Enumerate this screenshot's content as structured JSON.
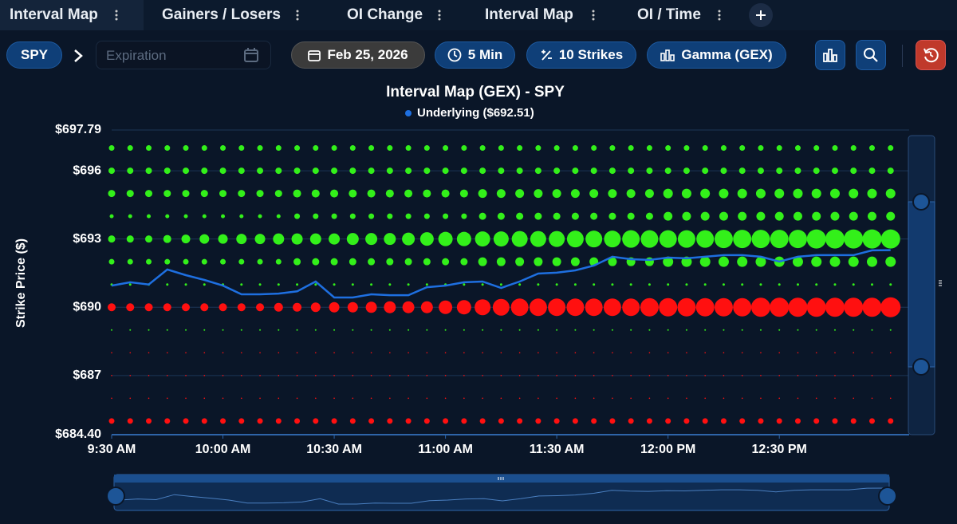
{
  "tabs": [
    "Interval Map",
    "Gainers / Losers",
    "OI Change",
    "Interval Map",
    "OI / Time"
  ],
  "toolbar": {
    "symbol": "SPY",
    "expiration_placeholder": "Expiration",
    "date": "Feb 25, 2026",
    "interval": "5 Min",
    "strikes": "10 Strikes",
    "metric": "Gamma (GEX)"
  },
  "chart_data": {
    "type": "bubble",
    "title": "Interval Map (GEX) - SPY",
    "y_label": "Strike Price ($)",
    "positive_color": "#33f01a",
    "negative_color": "#ff1010",
    "xlim": [
      "9:30",
      "13:05"
    ],
    "xticks": [
      {
        "value": "9:30",
        "label": "9:30 AM"
      },
      {
        "value": "10:00",
        "label": "10:00 AM"
      },
      {
        "value": "10:30",
        "label": "10:30 AM"
      },
      {
        "value": "11:00",
        "label": "11:00 AM"
      },
      {
        "value": "11:30",
        "label": "11:30 AM"
      },
      {
        "value": "12:00",
        "label": "12:00 PM"
      },
      {
        "value": "12:30",
        "label": "12:30 PM"
      }
    ],
    "ylim": [
      684.4,
      697.79
    ],
    "yticks": [
      {
        "value": 684.4,
        "label": "$684.40"
      },
      {
        "value": 687,
        "label": "$687"
      },
      {
        "value": 690,
        "label": "$690"
      },
      {
        "value": 693,
        "label": "$693"
      },
      {
        "value": 696,
        "label": "$696"
      },
      {
        "value": 697.79,
        "label": "$697.79"
      }
    ],
    "x": [
      "9:30",
      "9:35",
      "9:40",
      "9:45",
      "9:50",
      "9:55",
      "10:00",
      "10:05",
      "10:10",
      "10:15",
      "10:20",
      "10:25",
      "10:30",
      "10:35",
      "10:40",
      "10:45",
      "10:50",
      "10:55",
      "11:00",
      "11:05",
      "11:10",
      "11:15",
      "11:20",
      "11:25",
      "11:30",
      "11:35",
      "11:40",
      "11:45",
      "11:50",
      "11:55",
      "12:00",
      "12:05",
      "12:10",
      "12:15",
      "12:20",
      "12:25",
      "12:30",
      "12:35",
      "12:40",
      "12:45",
      "12:50",
      "12:55",
      "13:00"
    ],
    "underlying": {
      "name": "Underlying ($692.51)",
      "color": "#1e6fe0",
      "values": [
        690.95,
        691.1,
        691.0,
        691.66,
        691.41,
        691.2,
        690.95,
        690.57,
        690.57,
        690.6,
        690.7,
        691.13,
        690.43,
        690.43,
        690.57,
        690.53,
        690.53,
        690.88,
        690.95,
        691.1,
        691.13,
        690.85,
        691.13,
        691.48,
        691.52,
        691.62,
        691.83,
        692.22,
        692.11,
        692.08,
        692.18,
        692.15,
        692.22,
        692.29,
        692.29,
        692.22,
        692.01,
        692.22,
        692.29,
        692.29,
        692.29,
        692.5,
        692.51
      ]
    },
    "bubble_rows": [
      {
        "strike": 697,
        "values": [
          3.5,
          3.5,
          3.5,
          3.5,
          3.5,
          3.5,
          3.5,
          3.5,
          3.5,
          3.5,
          3.5,
          3.5,
          3.5,
          3.5,
          3.5,
          3.5,
          3.5,
          3.5,
          3.5,
          3.5,
          3.5,
          3.5,
          3.5,
          3.5,
          3.5,
          3.5,
          3.5,
          3.5,
          3.5,
          3.5,
          3.5,
          3.5,
          3.5,
          3.5,
          3.5,
          3.5,
          3.5,
          3.5,
          3.5,
          3.5,
          3.5,
          3.5,
          3.5
        ]
      },
      {
        "strike": 696,
        "values": [
          4,
          4,
          4,
          4,
          4,
          4,
          4,
          4,
          4,
          4,
          4,
          4,
          4,
          4,
          4,
          4,
          4,
          4,
          4,
          4,
          4,
          4,
          4,
          4,
          4,
          4,
          4,
          4,
          4,
          4,
          4,
          4,
          4,
          4,
          4,
          4,
          4,
          4,
          4,
          4,
          4,
          4,
          4
        ]
      },
      {
        "strike": 695,
        "values": [
          4.5,
          4.5,
          4.5,
          4.5,
          4.5,
          4.5,
          4.5,
          4.5,
          4.5,
          4.5,
          5,
          5,
          5,
          5,
          5,
          5,
          5,
          5,
          5,
          5,
          5.5,
          5.5,
          5.5,
          5.5,
          5.5,
          5.5,
          5.5,
          5.5,
          5.5,
          5.5,
          6,
          6,
          6,
          6,
          6,
          6,
          6,
          6,
          6,
          6,
          6,
          6,
          6
        ]
      },
      {
        "strike": 694,
        "values": [
          2.5,
          2.5,
          2.5,
          2.5,
          2.5,
          2.5,
          2.5,
          2.5,
          2.5,
          2.5,
          3.5,
          3.5,
          3.5,
          3.5,
          3.5,
          3.5,
          3.5,
          3.5,
          3.5,
          3.5,
          4.5,
          4.5,
          4.5,
          4.5,
          4.5,
          4.5,
          4.5,
          4.5,
          4.5,
          4.5,
          5.5,
          5.5,
          5.5,
          5.5,
          5.5,
          5.5,
          5.5,
          5.5,
          5.5,
          5.5,
          5.5,
          5.5,
          5.5
        ]
      },
      {
        "strike": 693,
        "values": [
          4.5,
          4.5,
          4.5,
          5,
          5.5,
          6,
          6,
          6.5,
          6.5,
          7,
          7,
          7,
          7,
          7.5,
          7.5,
          7.5,
          8,
          8.5,
          9,
          9,
          9.5,
          9.5,
          10,
          10,
          10,
          10.5,
          10.5,
          10.5,
          11,
          11,
          11,
          11,
          11,
          11.5,
          11.5,
          11.5,
          11.5,
          11.5,
          12,
          12,
          12,
          12,
          12
        ]
      },
      {
        "strike": 692,
        "values": [
          3.5,
          3.5,
          3.5,
          3.5,
          3.5,
          3.5,
          3.5,
          3.5,
          3.5,
          3.5,
          4.5,
          4.5,
          4.5,
          4.5,
          4.5,
          4.5,
          4.5,
          4.5,
          4.5,
          4.5,
          5.5,
          5.5,
          5.5,
          5.5,
          5.5,
          5.5,
          5.5,
          5.5,
          5.5,
          5.5,
          6.5,
          6.5,
          6.5,
          6.5,
          6.5,
          6.5,
          6.5,
          6.5,
          6.5,
          6.5,
          6.5,
          6.5,
          6.5
        ]
      },
      {
        "strike": 691,
        "values": [
          1.5,
          1.5,
          1.5,
          1.5,
          1.5,
          1.5,
          1.5,
          1.5,
          1.5,
          1.5,
          1.5,
          1.5,
          1.5,
          1.5,
          1.5,
          1.5,
          1.5,
          1.5,
          1.5,
          1.5,
          1.5,
          1.5,
          1.5,
          1.5,
          1.5,
          1.5,
          1.5,
          1.5,
          1.5,
          1.5,
          1.5,
          1.5,
          1.5,
          1.5,
          1.5,
          1.5,
          1.5,
          1.5,
          1.5,
          1.5,
          1.5,
          1.5,
          1.5
        ]
      },
      {
        "strike": 690,
        "values": [
          -5,
          -5,
          -5,
          -5,
          -5,
          -5,
          -5,
          -5,
          -5,
          -5.5,
          -5.5,
          -6,
          -6.5,
          -6.5,
          -7,
          -7.5,
          -7.5,
          -7.5,
          -8.5,
          -9,
          -10,
          -10.5,
          -11,
          -11,
          -11,
          -11,
          -11,
          -11,
          -11,
          -11.5,
          -11.5,
          -11.5,
          -11.5,
          -11.5,
          -11.5,
          -12,
          -12,
          -12,
          -12,
          -12,
          -12,
          -12,
          -12.5
        ]
      },
      {
        "strike": 689,
        "values": [
          1,
          1,
          1,
          1,
          1,
          1,
          1,
          1,
          1,
          1,
          1,
          1,
          1,
          1,
          1,
          1,
          1,
          1,
          1,
          1,
          1,
          1,
          1,
          1,
          1,
          1,
          1,
          1,
          1,
          1,
          1,
          1,
          1,
          1,
          1,
          1,
          1,
          1,
          1,
          1,
          1,
          1,
          1
        ]
      },
      {
        "strike": 688,
        "values": [
          -0.8,
          -0.8,
          -0.8,
          -0.8,
          -0.8,
          -0.8,
          -0.8,
          -0.8,
          -0.8,
          -0.8,
          -0.8,
          -0.8,
          -0.8,
          -0.8,
          -0.8,
          -0.8,
          -0.8,
          -0.8,
          -0.8,
          -0.8,
          -0.8,
          -0.8,
          -0.8,
          -0.8,
          -0.8,
          -0.8,
          -0.8,
          -0.8,
          -0.8,
          -0.8,
          -0.8,
          -0.8,
          -0.8,
          -0.8,
          -0.8,
          -0.8,
          -0.8,
          -0.8,
          -0.8,
          -0.8,
          -0.8,
          -0.8,
          -0.8
        ]
      },
      {
        "strike": 687,
        "values": [
          -0.8,
          -0.8,
          -0.8,
          -0.8,
          -0.8,
          -0.8,
          -0.8,
          -0.8,
          -0.8,
          -0.8,
          -0.8,
          -0.8,
          -0.8,
          -0.8,
          -0.8,
          -0.8,
          -0.8,
          -0.8,
          -0.8,
          -0.8,
          -0.8,
          -0.8,
          -0.8,
          -0.8,
          -0.8,
          -0.8,
          -0.8,
          -0.8,
          -0.8,
          -0.8,
          -0.8,
          -0.8,
          -0.8,
          -0.8,
          -0.8,
          -0.8,
          -0.8,
          -0.8,
          -0.8,
          -0.8,
          -0.8,
          -0.8,
          -0.8
        ]
      },
      {
        "strike": 686,
        "values": [
          -0.8,
          -0.8,
          -0.8,
          -0.8,
          -0.8,
          -0.8,
          -0.8,
          -0.8,
          -0.8,
          -0.8,
          -0.8,
          -0.8,
          -0.8,
          -0.8,
          -0.8,
          -0.8,
          -0.8,
          -0.8,
          -0.8,
          -0.8,
          -0.8,
          -0.8,
          -0.8,
          -0.8,
          -0.8,
          -0.8,
          -0.8,
          -0.8,
          -0.8,
          -0.8,
          -0.8,
          -0.8,
          -0.8,
          -0.8,
          -0.8,
          -0.8,
          -0.8,
          -0.8,
          -0.8,
          -0.8,
          -0.8,
          -0.8,
          -0.8
        ]
      },
      {
        "strike": 685,
        "values": [
          -3.5,
          -3.5,
          -3.5,
          -3.5,
          -3.5,
          -3.5,
          -3.5,
          -3.5,
          -3.5,
          -3.5,
          -3.5,
          -3.5,
          -3.5,
          -3.5,
          -3.5,
          -3.5,
          -3.5,
          -3.5,
          -3.5,
          -3.5,
          -3.5,
          -3.5,
          -3.5,
          -3.5,
          -3.5,
          -3.5,
          -3.5,
          -3.5,
          -3.5,
          -3.5,
          -3.5,
          -3.5,
          -3.5,
          -3.5,
          -3.5,
          -3.5,
          -3.5,
          -3.5,
          -3.5,
          -3.5,
          -3.5,
          -3.5,
          -3.5
        ]
      }
    ]
  }
}
